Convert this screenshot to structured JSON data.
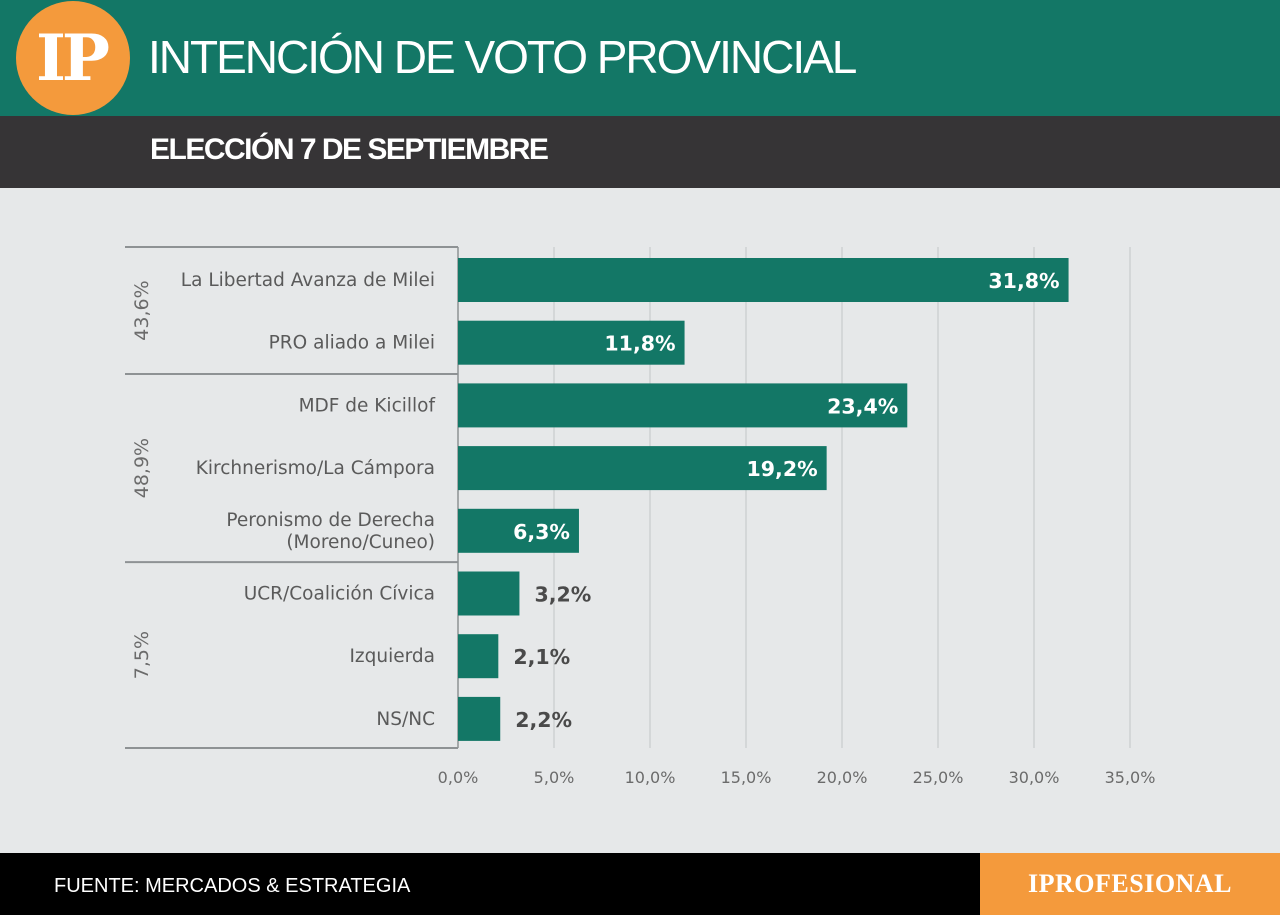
{
  "header": {
    "logo_text": "IP",
    "title": "INTENCIÓN DE VOTO PROVINCIAL",
    "subtitle": "ELECCIÓN 7 DE SEPTIEMBRE"
  },
  "footer": {
    "source": "FUENTE: MERCADOS & ESTRATEGIA",
    "brand": "IPROFESIONAL"
  },
  "colors": {
    "header_green": "#137766",
    "header_dark": "#363436",
    "bar": "#137766",
    "accent_orange": "#f49a3c",
    "background": "#e6e8e9"
  },
  "chart_data": {
    "type": "bar",
    "orientation": "horizontal",
    "categories": [
      "La Libertad Avanza de Milei",
      "PRO aliado a Milei",
      "MDF de Kicillof",
      "Kirchnerismo/La Cámpora",
      "Peronismo de Derecha (Moreno/Cuneo)",
      "UCR/Coalición Cívica",
      "Izquierda",
      "NS/NC"
    ],
    "values": [
      31.8,
      11.8,
      23.4,
      19.2,
      6.3,
      3.2,
      2.1,
      2.2
    ],
    "value_labels": [
      "31,8%",
      "11,8%",
      "23,4%",
      "19,2%",
      "6,3%",
      "3,2%",
      "2,1%",
      "2,2%"
    ],
    "groups": [
      {
        "label": "43,6%",
        "categories": [
          0,
          1
        ]
      },
      {
        "label": "48,9%",
        "categories": [
          2,
          3,
          4
        ]
      },
      {
        "label": "7,5%",
        "categories": [
          5,
          6,
          7
        ]
      }
    ],
    "xlim": [
      0,
      35
    ],
    "xticks": [
      0,
      5,
      10,
      15,
      20,
      25,
      30,
      35
    ],
    "xtick_labels": [
      "0,0%",
      "5,0%",
      "10,0%",
      "15,0%",
      "20,0%",
      "25,0%",
      "30,0%",
      "35,0%"
    ],
    "grid": "vertical",
    "xlabel": "",
    "ylabel": ""
  }
}
